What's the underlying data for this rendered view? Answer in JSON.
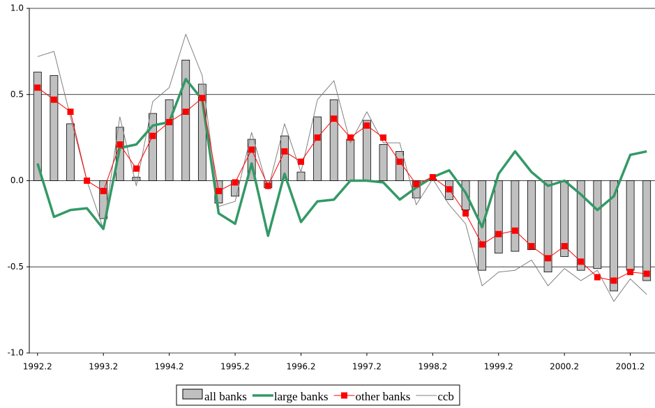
{
  "chart_data": {
    "type": "combo",
    "categories": [
      "1992.2",
      null,
      null,
      null,
      "1993.2",
      null,
      null,
      null,
      "1994.2",
      null,
      null,
      null,
      "1995.2",
      null,
      null,
      null,
      "1996.2",
      null,
      null,
      null,
      "1997.2",
      null,
      null,
      null,
      "1998.2",
      null,
      null,
      null,
      "1999.2",
      null,
      null,
      null,
      "2000.2",
      null,
      null,
      null,
      "2001.2",
      null
    ],
    "ylim": [
      -1.0,
      1.0
    ],
    "yticks": [
      {
        "value": -1.0,
        "label": "-1.0"
      },
      -0.5,
      {
        "value": 0.0,
        "label": "0.0"
      },
      0.5,
      {
        "value": 1.0,
        "label": "1.0"
      }
    ],
    "grid": true,
    "legend": "bottom",
    "series": [
      {
        "name": "all banks",
        "type": "bar",
        "color": "#c0c0c0",
        "values": [
          0.63,
          0.61,
          0.33,
          0.0,
          -0.22,
          0.31,
          0.02,
          0.39,
          0.47,
          0.7,
          0.56,
          -0.13,
          -0.09,
          0.24,
          -0.04,
          0.26,
          0.05,
          0.37,
          0.47,
          0.24,
          0.35,
          0.21,
          0.17,
          -0.1,
          0.01,
          -0.11,
          -0.17,
          -0.52,
          -0.42,
          -0.41,
          -0.4,
          -0.53,
          -0.44,
          -0.52,
          -0.51,
          -0.64,
          -0.52,
          -0.58
        ]
      },
      {
        "name": "large banks",
        "type": "line",
        "color": "#339966",
        "line_width": 3.5,
        "values": [
          0.1,
          -0.21,
          -0.17,
          -0.16,
          -0.28,
          0.19,
          0.21,
          0.32,
          0.34,
          0.59,
          0.47,
          -0.19,
          -0.25,
          0.1,
          -0.32,
          0.04,
          -0.24,
          -0.12,
          -0.11,
          0.0,
          0.0,
          -0.01,
          -0.11,
          -0.04,
          0.02,
          0.06,
          -0.07,
          -0.27,
          0.04,
          0.17,
          0.05,
          -0.03,
          0.0,
          -0.08,
          -0.17,
          -0.09,
          0.15,
          0.17
        ]
      },
      {
        "name": "other banks",
        "type": "line",
        "color": "#ff0000",
        "line_width": 1,
        "marker": "square",
        "values": [
          0.54,
          0.47,
          0.4,
          0.0,
          -0.06,
          0.21,
          0.07,
          0.26,
          0.34,
          0.4,
          0.48,
          -0.06,
          -0.01,
          0.18,
          -0.03,
          0.17,
          0.11,
          0.25,
          0.36,
          0.25,
          0.32,
          0.25,
          0.11,
          -0.02,
          0.02,
          -0.05,
          -0.19,
          -0.37,
          -0.31,
          -0.29,
          -0.38,
          -0.45,
          -0.38,
          -0.47,
          -0.56,
          -0.58,
          -0.53,
          -0.54
        ]
      },
      {
        "name": "ccb",
        "type": "line",
        "color": "#808080",
        "line_width": 1,
        "values": [
          0.72,
          0.75,
          0.37,
          0.0,
          -0.28,
          0.37,
          -0.03,
          0.46,
          0.54,
          0.85,
          0.61,
          -0.15,
          -0.12,
          0.28,
          -0.05,
          0.33,
          0.05,
          0.47,
          0.58,
          0.22,
          0.4,
          0.22,
          0.22,
          -0.14,
          0.01,
          -0.14,
          -0.25,
          -0.61,
          -0.53,
          -0.52,
          -0.46,
          -0.61,
          -0.51,
          -0.58,
          -0.52,
          -0.7,
          -0.57,
          -0.66
        ]
      }
    ]
  }
}
